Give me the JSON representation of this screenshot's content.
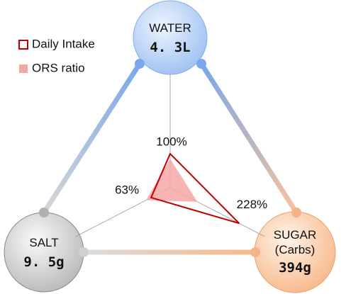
{
  "chart_data": {
    "type": "radar",
    "categories": [
      "WATER",
      "SALT",
      "SUGAR (Carbs)"
    ],
    "amounts": [
      "4. 3L",
      "9. 5g",
      "394g"
    ],
    "series": [
      {
        "name": "Daily Intake",
        "color": "#c00000",
        "values": [
          100,
          63,
          228
        ],
        "value_labels": [
          "100%",
          "63%",
          "228%"
        ]
      },
      {
        "name": "ORS ratio",
        "color": "#f4a7a7",
        "values": [
          85,
          80,
          90
        ]
      }
    ],
    "legend": "upper left"
  }
}
